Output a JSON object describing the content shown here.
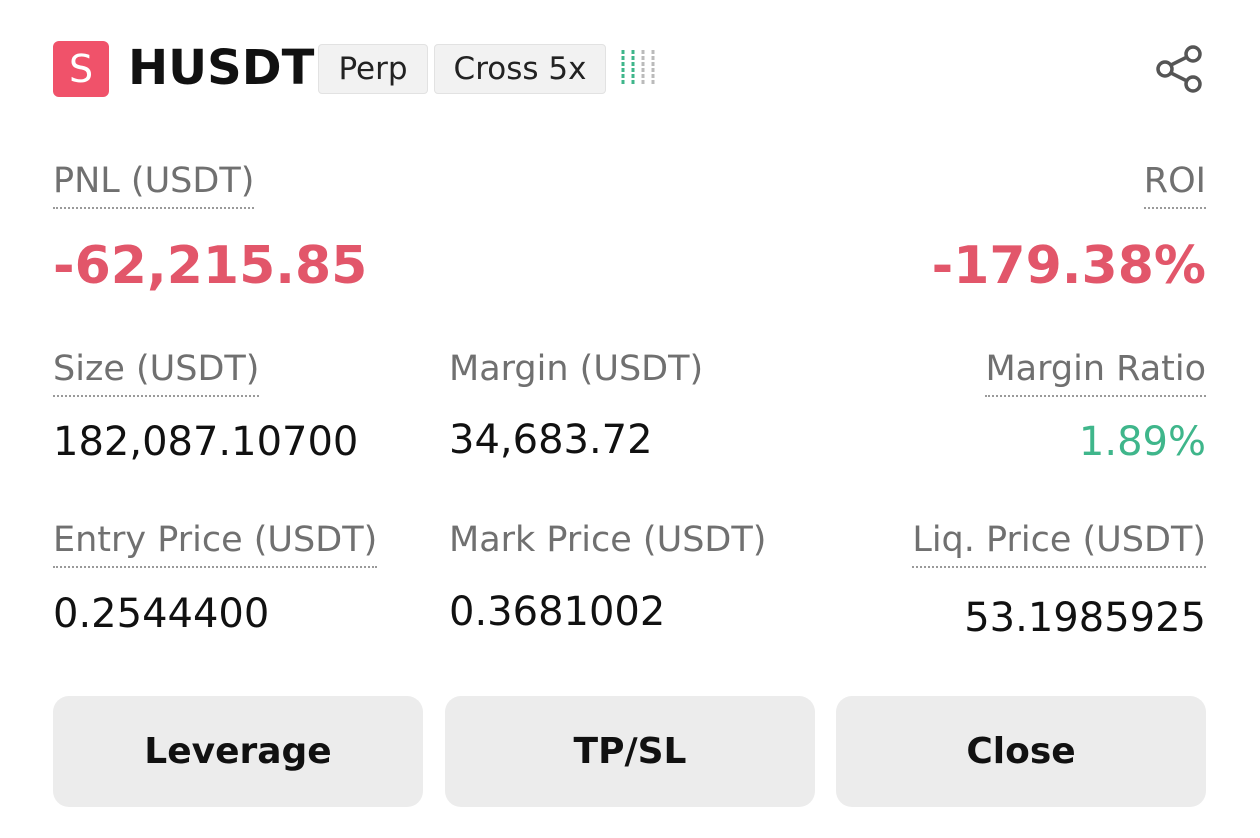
{
  "header": {
    "icon": "S",
    "symbol": "HUSDT",
    "tags": [
      "Perp",
      "Cross 5x"
    ]
  },
  "pnl": {
    "label": "PNL (USDT)",
    "value": "-62,215.85"
  },
  "roi": {
    "label": "ROI",
    "value": "-179.38%"
  },
  "fields": [
    {
      "label": "Size (USDT)",
      "value": "182,087.10700"
    },
    {
      "label": "Margin (USDT)",
      "value": "34,683.72"
    },
    {
      "label": "Margin Ratio",
      "value": "1.89%"
    },
    {
      "label": "Entry Price (USDT)",
      "value": "0.2544400"
    },
    {
      "label": "Mark Price (USDT)",
      "value": "0.3681002"
    },
    {
      "label": "Liq. Price (USDT)",
      "value": "53.1985925"
    }
  ],
  "buttons": [
    "Leverage",
    "TP/SL",
    "Close"
  ]
}
